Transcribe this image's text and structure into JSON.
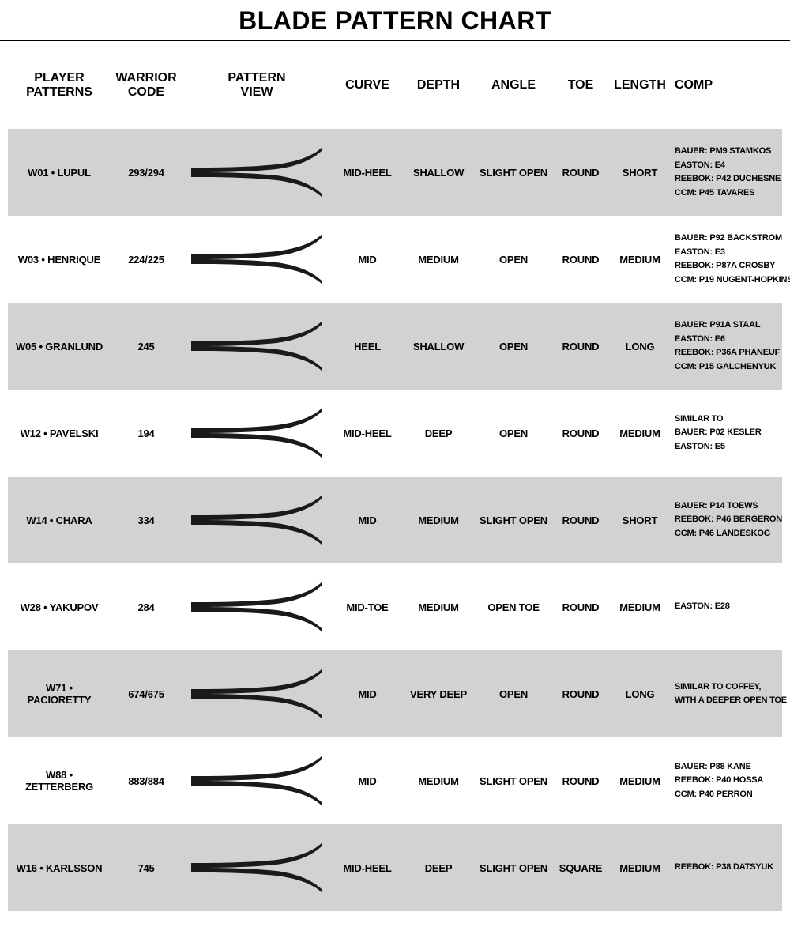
{
  "title": "BLADE PATTERN CHART",
  "colors": {
    "row_alt": "#d2d2d2",
    "row_norm": "#ffffff",
    "text": "#000000",
    "blade_fill": "#1a1a1a"
  },
  "columns": [
    {
      "key": "player",
      "label": "PLAYER\nPATTERNS"
    },
    {
      "key": "code",
      "label": "WARRIOR\nCODE"
    },
    {
      "key": "pattern",
      "label": "PATTERN\nVIEW"
    },
    {
      "key": "curve",
      "label": "CURVE"
    },
    {
      "key": "depth",
      "label": "DEPTH"
    },
    {
      "key": "angle",
      "label": "ANGLE"
    },
    {
      "key": "toe",
      "label": "TOE"
    },
    {
      "key": "length",
      "label": "LENGTH"
    },
    {
      "key": "comp",
      "label": "COMP"
    }
  ],
  "rows": [
    {
      "player": "W01 • LUPUL",
      "code": "293/294",
      "curve": "Mid-Heel",
      "depth": "Shallow",
      "angle": "Slight Open",
      "toe": "Round",
      "length": "Short",
      "comp": [
        "BAUER: PM9 STAMKOS",
        "EASTON: E4",
        "REEBOK: P42 DUCHESNE",
        "CCM: P45 TAVARES"
      ]
    },
    {
      "player": "W03 • HENRIQUE",
      "code": "224/225",
      "curve": "Mid",
      "depth": "Medium",
      "angle": "Open",
      "toe": "Round",
      "length": "Medium",
      "comp": [
        "BAUER: P92 BACKSTROM",
        "EASTON: E3",
        "REEBOK: P87A CROSBY",
        "CCM: P19 NUGENT-HOPKINS"
      ]
    },
    {
      "player": "W05 • GRANLUND",
      "code": "245",
      "curve": "Heel",
      "depth": "Shallow",
      "angle": "Open",
      "toe": "Round",
      "length": "Long",
      "comp": [
        "BAUER: P91A STAAL",
        "EASTON: E6",
        "REEBOK: P36A PHANEUF",
        "CCM: P15 GALCHENYUK"
      ]
    },
    {
      "player": "W12 • PAVELSKI",
      "code": "194",
      "curve": "Mid-Heel",
      "depth": "Deep",
      "angle": "Open",
      "toe": "Round",
      "length": "Medium",
      "comp": [
        "SIMILAR TO",
        "BAUER: P02 KESLER",
        "EASTON: E5"
      ]
    },
    {
      "player": "W14 • CHARA",
      "code": "334",
      "curve": "Mid",
      "depth": "Medium",
      "angle": "Slight Open",
      "toe": "Round",
      "length": "Short",
      "comp": [
        "BAUER: P14 TOEWS",
        "REEBOK: P46 BERGERON",
        "CCM: P46 LANDESKOG"
      ]
    },
    {
      "player": "W28 • YAKUPOV",
      "code": "284",
      "curve": "Mid-Toe",
      "depth": "Medium",
      "angle": "Open Toe",
      "toe": "Round",
      "length": "Medium",
      "comp": [
        "EASTON: E28"
      ]
    },
    {
      "player": "W71 • PACIORETTY",
      "code": "674/675",
      "curve": "Mid",
      "depth": "Very Deep",
      "angle": "Open",
      "toe": "Round",
      "length": "Long",
      "comp": [
        "SIMILAR TO COFFEY,",
        "WITH A DEEPER OPEN TOE"
      ]
    },
    {
      "player": "W88 • ZETTERBERG",
      "code": "883/884",
      "curve": "Mid",
      "depth": "Medium",
      "angle": "Slight Open",
      "toe": "Round",
      "length": "Medium",
      "comp": [
        "BAUER: P88 KANE",
        "REEBOK: P40 HOSSA",
        "CCM: P40 PERRON"
      ]
    },
    {
      "player": "W16 • KARLSSON",
      "code": "745",
      "curve": "Mid-Heel",
      "depth": "Deep",
      "angle": "Slight Open",
      "toe": "Square",
      "length": "Medium",
      "comp": [
        "REEBOK: P38 DATSYUK"
      ]
    }
  ]
}
